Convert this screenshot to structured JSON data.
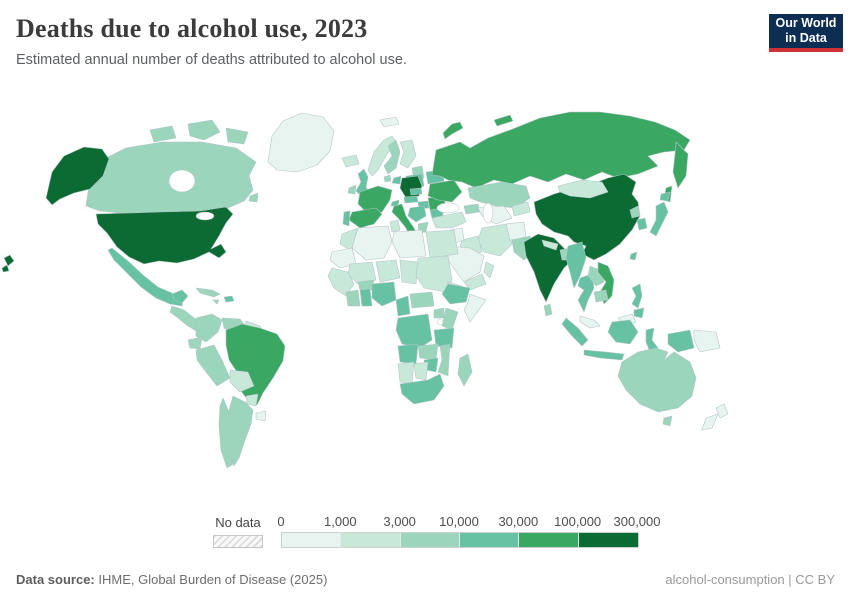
{
  "header": {
    "title": "Deaths due to alcohol use, 2023",
    "subtitle": "Estimated annual number of deaths attributed to alcohol use."
  },
  "logo": {
    "line1": "Our World",
    "line2": "in Data",
    "bg_color": "#0d2e52",
    "accent_color": "#cf3235"
  },
  "footer": {
    "source_label": "Data source:",
    "source_text": " IHME, Global Burden of Disease (2025)",
    "right_text": "alcohol-consumption | CC BY"
  },
  "chart_data": {
    "type": "choropleth_map",
    "title": "Deaths due to alcohol use, 2023",
    "subtitle": "Estimated annual number of deaths attributed to alcohol use.",
    "unit": "deaths per year",
    "legend": {
      "no_data_label": "No data",
      "tick_labels": [
        "0",
        "1,000",
        "3,000",
        "10,000",
        "30,000",
        "100,000",
        "300,000"
      ],
      "bin_edges": [
        0,
        1000,
        3000,
        10000,
        30000,
        100000,
        300000
      ],
      "bin_colors": [
        "#e7f4ef",
        "#c8e8d9",
        "#9ad5bc",
        "#67c2a3",
        "#3aa862",
        "#0c6b33"
      ],
      "no_data_pattern": "diagonal-hatch"
    },
    "map_colors": {
      "ocean": "#ffffff",
      "border": "#b5c4ca"
    },
    "country_bins": {
      "Greenland": 1,
      "Canada": 3,
      "United States": 6,
      "Mexico": 4,
      "Central America": 3,
      "Cuba": 3,
      "Haiti/Dominican Rep.": 4,
      "Jamaica": 3,
      "Colombia": 3,
      "Venezuela": 3,
      "Guyana/Suriname": 2,
      "Ecuador": 3,
      "Peru": 3,
      "Brazil": 5,
      "Bolivia": 2,
      "Paraguay": 2,
      "Uruguay": 1,
      "Argentina": 3,
      "Chile": 3,
      "Iceland": 2,
      "Ireland": 3,
      "United Kingdom": 4,
      "Norway": 2,
      "Sweden": 3,
      "Finland": 2,
      "Svalbard": 1,
      "Denmark": 3,
      "Baltic states": 3,
      "Belarus": 4,
      "Poland": 4,
      "Germany": 6,
      "Benelux": 4,
      "France": 5,
      "Spain": 5,
      "Portugal": 4,
      "Italy": 5,
      "Switzerland": 4,
      "Czechia": 4,
      "Austria": 4,
      "Hungary": 4,
      "Serbia/Balkans": 4,
      "Greece": 3,
      "Romania": 5,
      "Bulgaria": 4,
      "Ukraine": 5,
      "Russia": 5,
      "Turkey": 2,
      "Georgia/Azerbaijan": 3,
      "Kazakhstan": 3,
      "Turkmenistan/Uzbekistan": 1,
      "Kyrgyzstan/Tajikistan": 2,
      "Iran": 2,
      "Iraq": 2,
      "Levant": 1,
      "Saudi Arabia": 1,
      "Yemen": 2,
      "Oman": 2,
      "Afghanistan": 1,
      "Pakistan": 3,
      "India": 6,
      "Nepal": 2,
      "Bangladesh": 3,
      "Sri Lanka": 3,
      "China": 6,
      "Mongolia": 2,
      "North Korea": 3,
      "South Korea": 4,
      "Japan": 4,
      "Taiwan": 4,
      "Myanmar": 4,
      "Thailand": 4,
      "Laos": 3,
      "Vietnam": 5,
      "Cambodia": 3,
      "Malaysia": 1,
      "Indonesia": 4,
      "Papua New Guinea": 1,
      "Philippines": 4,
      "Morocco": 2,
      "Mauritania/W. Sahara": 1,
      "Algeria": 1,
      "Tunisia": 2,
      "Libya": 1,
      "Egypt": 2,
      "Mali": 2,
      "Niger": 2,
      "Chad": 2,
      "Sudan": 2,
      "Eritrea": 2,
      "Senegal/Guinea": 2,
      "Cote d'Ivoire": 3,
      "Burkina Faso": 3,
      "Ghana": 4,
      "Nigeria": 4,
      "Cameroon": 4,
      "Central African Rep.": 3,
      "Ethiopia": 4,
      "Somalia": 1,
      "Uganda": 3,
      "Kenya": 3,
      "Dem. Rep. Congo": 4,
      "Tanzania": 4,
      "Angola": 4,
      "Zambia": 3,
      "Mozambique": 3,
      "Zimbabwe": 4,
      "Namibia": 2,
      "Botswana": 2,
      "South Africa": 4,
      "Madagascar": 3,
      "Australia": 3,
      "New Zealand": 1
    }
  }
}
